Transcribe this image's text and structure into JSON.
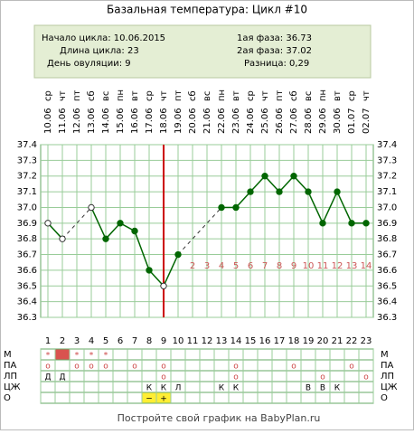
{
  "chart_data": {
    "type": "line",
    "title": "Базальная температура: Цикл #10",
    "info": {
      "cycle_start": "Начало цикла: 10.06.2015",
      "cycle_length": "Длина цикла: 23",
      "ovulation_day": "День овуляции: 9",
      "phase1": "1ая фаза: 36.73",
      "phase2": "2ая фаза: 37.02",
      "difference": "Разница: 0,29"
    },
    "categories": [
      1,
      2,
      3,
      4,
      5,
      6,
      7,
      8,
      9,
      10,
      11,
      12,
      13,
      14,
      15,
      16,
      17,
      18,
      19,
      20,
      21,
      22,
      23
    ],
    "dates": [
      "10.06",
      "11.06",
      "12.06",
      "13.06",
      "14.06",
      "15.06",
      "16.06",
      "17.06",
      "18.06",
      "19.06",
      "20.06",
      "21.06",
      "22.06",
      "23.06",
      "24.06",
      "25.06",
      "26.06",
      "27.06",
      "28.06",
      "29.06",
      "30.06",
      "01.07",
      "02.07"
    ],
    "weekdays": [
      "ср",
      "чт",
      "пт",
      "сб",
      "вс",
      "пн",
      "вт",
      "ср",
      "чт",
      "пт",
      "сб",
      "вс",
      "пн",
      "вт",
      "ср",
      "чт",
      "пт",
      "сб",
      "вс",
      "пн",
      "вт",
      "ср",
      "чт"
    ],
    "series": [
      {
        "name": "temperature",
        "color": "#006600",
        "values": [
          36.9,
          36.8,
          null,
          37.0,
          36.8,
          36.9,
          36.85,
          36.6,
          36.5,
          36.7,
          null,
          null,
          37.0,
          37.0,
          37.1,
          37.2,
          37.1,
          37.2,
          37.1,
          36.9,
          37.1,
          36.9,
          36.9
        ]
      }
    ],
    "open_markers": [
      1,
      2,
      4,
      9
    ],
    "ovulation_line": 9,
    "ovulation_color": "#cc0000",
    "phase_day_labels": [
      null,
      null,
      null,
      null,
      null,
      null,
      null,
      null,
      null,
      null,
      2,
      3,
      4,
      5,
      6,
      7,
      8,
      9,
      10,
      11,
      12,
      13,
      14
    ],
    "phase_label_color": "#cc5555",
    "ylim": [
      36.3,
      37.4
    ],
    "yticks": [
      {
        "value": 37.4,
        "label": "37.4"
      },
      {
        "value": 37.3,
        "label": "37.3"
      },
      {
        "value": 37.2,
        "label": "37.2"
      },
      {
        "value": 37.1,
        "label": "37.1"
      },
      {
        "value": 37.0,
        "label": "37.0"
      },
      {
        "value": 36.9,
        "label": "36.9"
      },
      {
        "value": 36.8,
        "label": "36.8"
      },
      {
        "value": 36.7,
        "label": "36.7"
      },
      {
        "value": 36.6,
        "label": "36.6"
      },
      {
        "value": 36.5,
        "label": "36.5"
      },
      {
        "value": 36.4,
        "label": "36.4"
      },
      {
        "value": 36.3,
        "label": "36.3"
      }
    ],
    "grid": true,
    "rows": [
      {
        "label": "М",
        "cells": [
          "*",
          null,
          "*",
          "*",
          "*",
          null,
          null,
          null,
          null,
          null,
          null,
          null,
          null,
          null,
          null,
          null,
          null,
          null,
          null,
          null,
          null,
          null,
          null
        ],
        "fill_days": [
          2
        ],
        "fill_color": "#d9534f"
      },
      {
        "label": "ПА",
        "cells": [
          "o",
          null,
          "o",
          "o",
          "o",
          null,
          "o",
          null,
          "o",
          null,
          null,
          null,
          null,
          "o",
          null,
          null,
          null,
          "o",
          null,
          null,
          null,
          "o",
          null
        ]
      },
      {
        "label": "ЛП",
        "cells": [
          "Д",
          "Д",
          null,
          null,
          null,
          null,
          null,
          null,
          "o",
          null,
          null,
          null,
          null,
          "o",
          null,
          null,
          null,
          null,
          null,
          "o",
          null,
          null,
          "o"
        ]
      },
      {
        "label": "ЦЖ",
        "cells": [
          null,
          null,
          null,
          null,
          null,
          null,
          null,
          "К",
          "К",
          "Л",
          null,
          null,
          "К",
          "К",
          null,
          null,
          null,
          null,
          "В",
          "В",
          "К",
          null,
          null
        ]
      },
      {
        "label": "О",
        "cells": [
          null,
          null,
          null,
          null,
          null,
          null,
          null,
          "−",
          "+",
          null,
          null,
          null,
          null,
          null,
          null,
          null,
          null,
          null,
          null,
          null,
          null,
          null,
          null
        ],
        "fill_days": [
          8,
          9
        ],
        "fill_color": "#ffee33"
      }
    ],
    "footer": "Постройте свой график на BabyPlan.ru"
  }
}
